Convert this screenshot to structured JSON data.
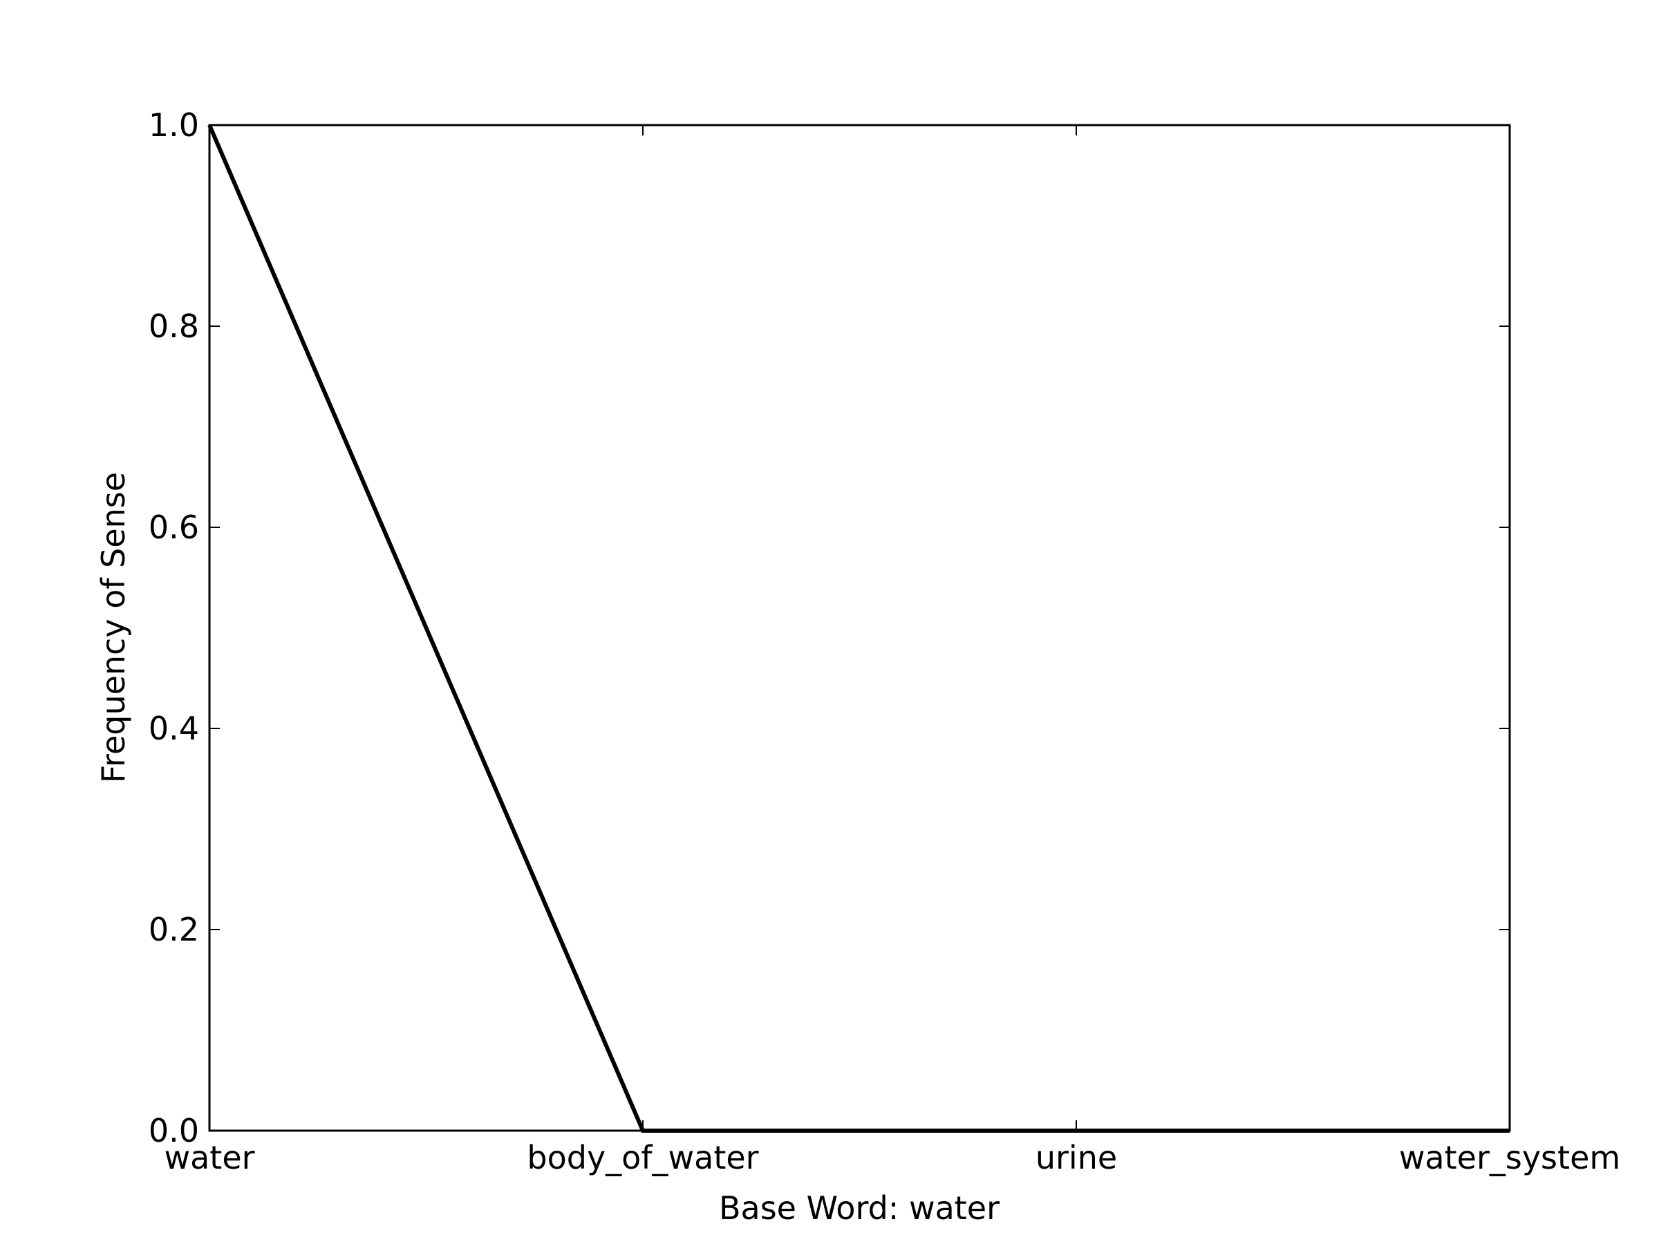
{
  "chart_data": {
    "type": "line",
    "title": "",
    "xlabel": "Base Word: water",
    "ylabel": "Frequency of Sense",
    "categories": [
      "water",
      "body_of_water",
      "urine",
      "water_system"
    ],
    "series": [
      {
        "values": [
          1.0,
          0.0,
          0.0,
          0.0
        ],
        "color": "#000000"
      }
    ],
    "ylim": [
      0.0,
      1.0
    ],
    "yticks": [
      "0.0",
      "0.2",
      "0.4",
      "0.6",
      "0.8",
      "1.0"
    ],
    "grid": false,
    "legend": "none"
  }
}
